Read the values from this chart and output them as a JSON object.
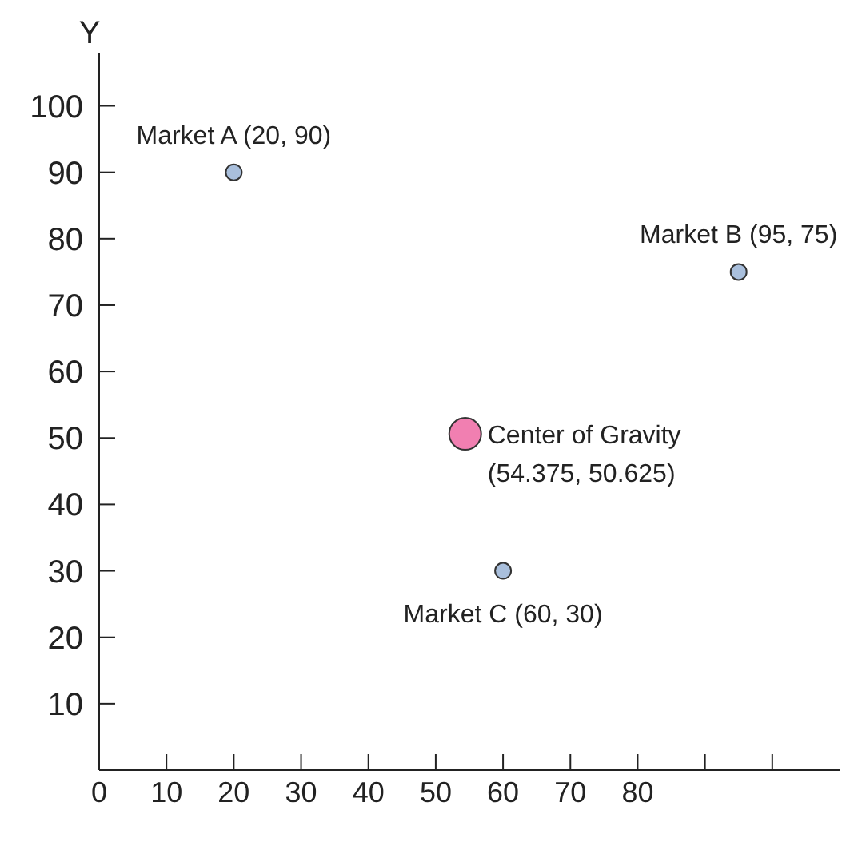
{
  "chart_data": {
    "type": "scatter",
    "ylabel": "Y",
    "series": [
      {
        "color": "#a9bfdc",
        "marker": "circle",
        "x": [
          20,
          95,
          60
        ],
        "values": [
          90,
          75,
          30
        ]
      },
      {
        "color": "#f17fb1",
        "marker": "circle",
        "x": [
          54.375
        ],
        "values": [
          50.625
        ]
      }
    ],
    "xlim": [
      0,
      110
    ],
    "xticks": [
      {
        "value": 0,
        "label": "0"
      },
      10,
      20,
      30,
      40,
      50,
      60,
      70,
      80,
      {
        "value": 90,
        "label": null
      },
      {
        "value": 100,
        "label": null
      }
    ],
    "ylim": [
      0,
      108
    ],
    "yticks": [
      10,
      20,
      30,
      40,
      50,
      60,
      70,
      80,
      90,
      100
    ],
    "annotations": [
      {
        "text": "Market A (20, 90)",
        "x": 20,
        "y": 90
      },
      {
        "text": "Market B (95, 75)",
        "x": 95,
        "y": 75
      },
      {
        "text": "Market C (60, 30)",
        "x": 60,
        "y": 30
      },
      {
        "text": "Center of Gravity",
        "x": 54.375,
        "y": 50.625
      },
      {
        "text": "(54.375, 50.625)",
        "x": 54.375,
        "y": 50.625
      }
    ],
    "grid": false,
    "legend": false
  }
}
